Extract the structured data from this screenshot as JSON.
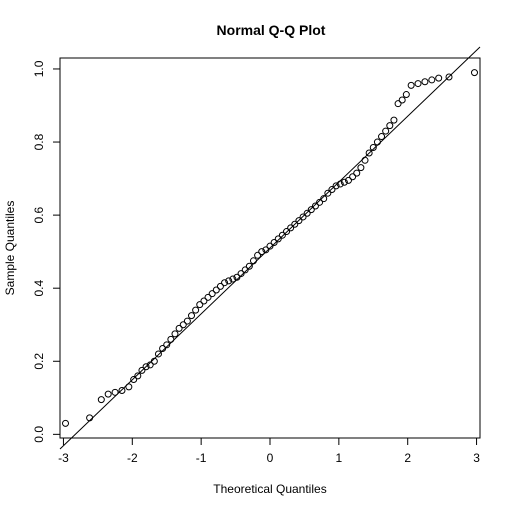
{
  "chart_data": {
    "type": "scatter",
    "title": "Normal Q-Q Plot",
    "xlabel": "Theoretical Quantiles",
    "ylabel": "Sample Quantiles",
    "xlim": [
      -3.05,
      3.05
    ],
    "ylim": [
      -0.01,
      1.03
    ],
    "xticks": [
      -3,
      -2,
      -1,
      0,
      1,
      2,
      3
    ],
    "xtick_labels": [
      "-3",
      "-2",
      "-1",
      "0",
      "1",
      "2",
      "3"
    ],
    "yticks": [
      0.0,
      0.2,
      0.4,
      0.6,
      0.8,
      1.0
    ],
    "ytick_labels": [
      "0.0",
      "0.2",
      "0.4",
      "0.6",
      "0.8",
      "1.0"
    ],
    "grid": false,
    "marker": "open-circle",
    "reference_line": {
      "x": [
        -3.05,
        3.05
      ],
      "y": [
        -0.04,
        1.06
      ]
    },
    "points": {
      "x": [
        -2.97,
        -2.62,
        -2.45,
        -2.35,
        -2.25,
        -2.15,
        -2.05,
        -1.98,
        -1.92,
        -1.86,
        -1.8,
        -1.74,
        -1.68,
        -1.62,
        -1.56,
        -1.5,
        -1.44,
        -1.38,
        -1.32,
        -1.26,
        -1.2,
        -1.14,
        -1.08,
        -1.02,
        -0.96,
        -0.9,
        -0.84,
        -0.78,
        -0.72,
        -0.66,
        -0.6,
        -0.54,
        -0.48,
        -0.42,
        -0.36,
        -0.3,
        -0.24,
        -0.18,
        -0.12,
        -0.06,
        0.0,
        0.06,
        0.12,
        0.18,
        0.24,
        0.3,
        0.36,
        0.42,
        0.48,
        0.54,
        0.6,
        0.66,
        0.72,
        0.78,
        0.84,
        0.9,
        0.96,
        1.02,
        1.08,
        1.14,
        1.2,
        1.26,
        1.32,
        1.38,
        1.44,
        1.5,
        1.56,
        1.62,
        1.68,
        1.74,
        1.8,
        1.86,
        1.92,
        1.98,
        2.05,
        2.15,
        2.25,
        2.35,
        2.45,
        2.6,
        2.97
      ],
      "y": [
        0.03,
        0.045,
        0.095,
        0.11,
        0.115,
        0.12,
        0.13,
        0.15,
        0.16,
        0.175,
        0.185,
        0.19,
        0.2,
        0.22,
        0.235,
        0.245,
        0.26,
        0.275,
        0.29,
        0.3,
        0.31,
        0.325,
        0.34,
        0.355,
        0.365,
        0.375,
        0.385,
        0.395,
        0.405,
        0.415,
        0.42,
        0.425,
        0.43,
        0.44,
        0.45,
        0.46,
        0.475,
        0.49,
        0.5,
        0.505,
        0.515,
        0.525,
        0.535,
        0.545,
        0.555,
        0.565,
        0.575,
        0.585,
        0.595,
        0.605,
        0.615,
        0.625,
        0.635,
        0.645,
        0.66,
        0.67,
        0.68,
        0.685,
        0.69,
        0.695,
        0.705,
        0.715,
        0.73,
        0.75,
        0.77,
        0.785,
        0.8,
        0.815,
        0.83,
        0.845,
        0.86,
        0.905,
        0.915,
        0.93,
        0.955,
        0.96,
        0.965,
        0.97,
        0.975,
        0.978,
        0.99
      ]
    }
  }
}
